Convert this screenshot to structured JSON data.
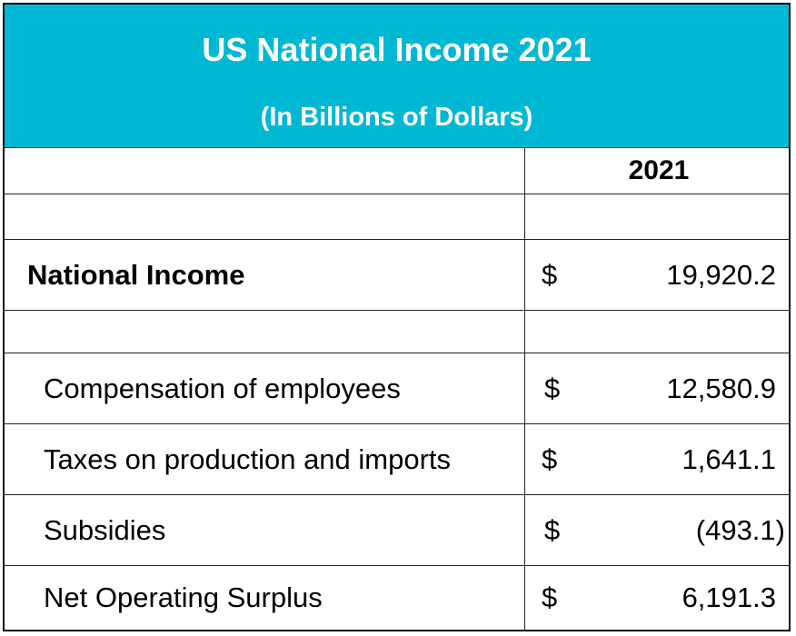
{
  "table": {
    "title": "US National Income 2021",
    "subtitle": "(In Billions of Dollars)",
    "year_header": "2021",
    "rows": [
      {
        "label": "National Income",
        "currency": "$",
        "amount": "19,920.2"
      },
      {
        "label": "Compensation of employees",
        "currency": "$",
        "amount": "12,580.9"
      },
      {
        "label": "Taxes on production and imports",
        "currency": "$",
        "amount": "1,641.1"
      },
      {
        "label": "Subsidies",
        "currency": "$",
        "amount": "(493.1)"
      },
      {
        "label": "Net Operating Surplus",
        "currency": "$",
        "amount": "6,191.3"
      }
    ]
  },
  "colors": {
    "header_background": "#00b8d4",
    "header_text": "#ffffff",
    "border": "#222222"
  }
}
